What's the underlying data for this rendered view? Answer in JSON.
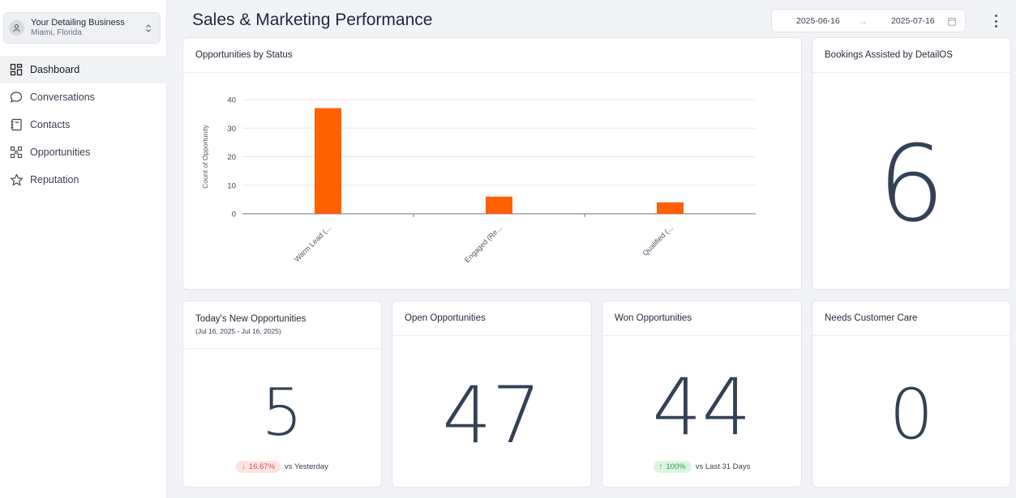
{
  "business": {
    "name": "Your Detailing Business",
    "location": "Miami, Florida"
  },
  "nav": [
    {
      "label": "Dashboard",
      "icon": "dashboard-icon"
    },
    {
      "label": "Conversations",
      "icon": "chat-bubble-icon"
    },
    {
      "label": "Contacts",
      "icon": "contacts-book-icon"
    },
    {
      "label": "Opportunities",
      "icon": "opportunities-icon"
    },
    {
      "label": "Reputation",
      "icon": "star-icon"
    }
  ],
  "header": {
    "title": "Sales & Marketing Performance",
    "date_start": "2025-06-16",
    "date_end": "2025-07-16",
    "date_arrow": "→"
  },
  "opportunities_card": {
    "title": "Opportunities by Status"
  },
  "bookings_card": {
    "title": "Bookings Assisted by DetailOS",
    "value": "6"
  },
  "new_opps_card": {
    "title": "Today's New Opportunities",
    "subtitle": "(Jul 16, 2025 - Jul 16, 2025)",
    "value": "5",
    "change": "16.67%",
    "change_arrow": "↓",
    "comparison": "vs Yesterday"
  },
  "open_opps_card": {
    "title": "Open Opportunities",
    "value": "47"
  },
  "won_opps_card": {
    "title": "Won Opportunities",
    "value": "44",
    "change": "100%",
    "change_arrow": "↑",
    "comparison": "vs Last 31 Days"
  },
  "care_card": {
    "title": "Needs Customer Care",
    "value": "0"
  },
  "colors": {
    "bar": "#ff6000",
    "accent_text": "#334155"
  },
  "chart_data": {
    "type": "bar",
    "title": "Opportunities by Status",
    "categories": [
      "Warm Lead (...",
      "Engaged (Re...",
      "Qualified (..."
    ],
    "values": [
      37,
      6,
      4
    ],
    "xlabel": "",
    "ylabel": "Count of Opportunity",
    "ylim": [
      0,
      40
    ],
    "yticks": [
      0,
      10,
      20,
      30,
      40
    ],
    "grid": true
  }
}
